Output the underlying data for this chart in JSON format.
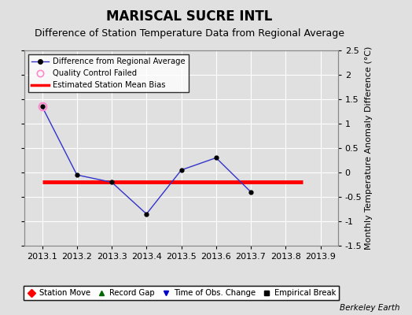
{
  "title": "MARISCAL SUCRE INTL",
  "subtitle": "Difference of Station Temperature Data from Regional Average",
  "ylabel": "Monthly Temperature Anomaly Difference (°C)",
  "xlabel_ticks": [
    "2013.1",
    "2013.2",
    "2013.3",
    "2013.4",
    "2013.5",
    "2013.6",
    "2013.7",
    "2013.8",
    "2013.9"
  ],
  "x_values": [
    2013.1,
    2013.2,
    2013.3,
    2013.4,
    2013.5,
    2013.6,
    2013.7
  ],
  "y_values": [
    1.35,
    -0.05,
    -0.2,
    -0.85,
    0.05,
    0.3,
    -0.4
  ],
  "qc_failed_x": [
    2013.1
  ],
  "qc_failed_y": [
    1.35
  ],
  "bias_y": -0.2,
  "bias_x_start": 2013.1,
  "bias_x_end": 2013.85,
  "xlim": [
    2013.05,
    2013.95
  ],
  "ylim": [
    -1.5,
    2.5
  ],
  "yticks": [
    -1.5,
    -1.0,
    -0.5,
    0.0,
    0.5,
    1.0,
    1.5,
    2.0,
    2.5
  ],
  "yticklabels": [
    "-1.5",
    "-1",
    "-0.5",
    "0",
    "0.5",
    "1",
    "1.5",
    "2",
    "2.5"
  ],
  "line_color": "#3333CC",
  "marker_color": "#000000",
  "qc_color": "#FF88CC",
  "bias_color": "#FF0000",
  "bg_color": "#E0E0E0",
  "grid_color": "#FFFFFF",
  "watermark": "Berkeley Earth",
  "title_fontsize": 12,
  "subtitle_fontsize": 9,
  "tick_fontsize": 8,
  "ylabel_fontsize": 8
}
